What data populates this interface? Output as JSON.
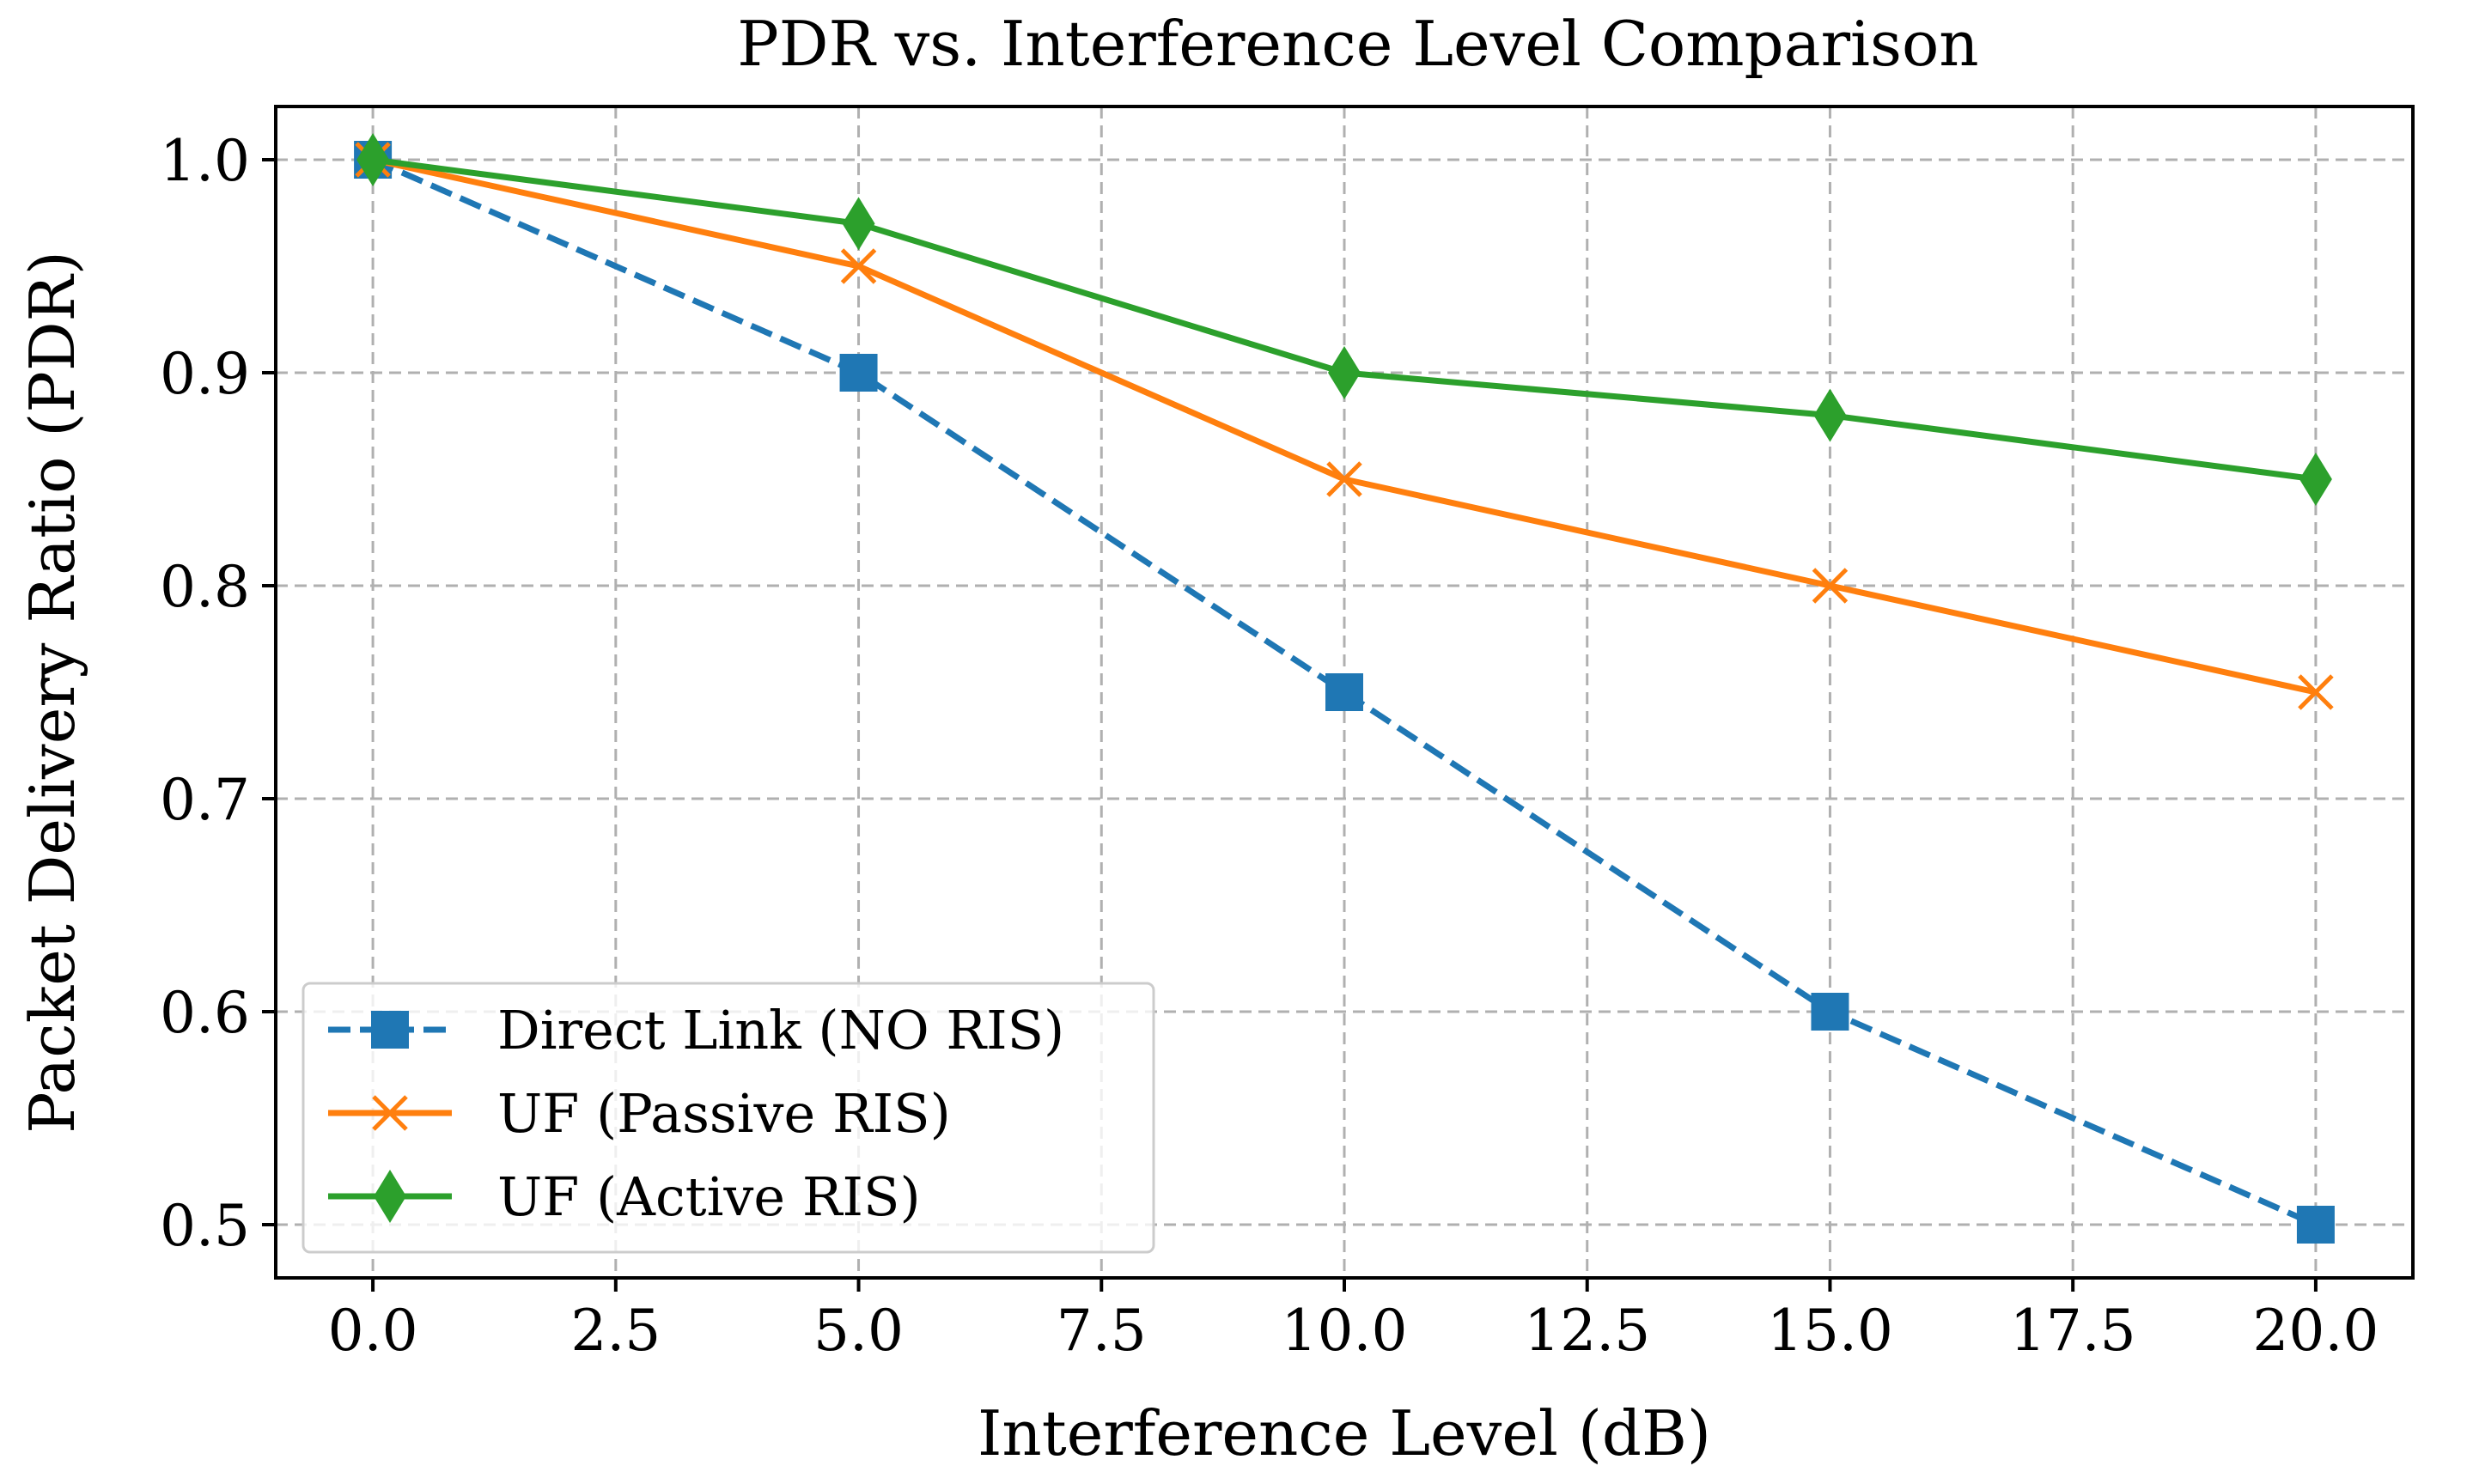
{
  "chart_data": {
    "type": "line",
    "title": "PDR vs. Interference Level Comparison",
    "xlabel": "Interference Level (dB)",
    "ylabel": "Packet Delivery Ratio (PDR)",
    "xlim": [
      -1,
      21
    ],
    "ylim": [
      0.475,
      1.025
    ],
    "grid": true,
    "legend_position": "bottom-left",
    "xticks": [
      0.0,
      2.5,
      5.0,
      7.5,
      10.0,
      12.5,
      15.0,
      17.5,
      20.0
    ],
    "xtick_labels": [
      "0.0",
      "2.5",
      "5.0",
      "7.5",
      "10.0",
      "12.5",
      "15.0",
      "17.5",
      "20.0"
    ],
    "yticks": [
      0.5,
      0.6,
      0.7,
      0.8,
      0.9,
      1.0
    ],
    "ytick_labels": [
      "0.5",
      "0.6",
      "0.7",
      "0.8",
      "0.9",
      "1.0"
    ],
    "x": [
      0,
      5,
      10,
      15,
      20
    ],
    "series": [
      {
        "name": "Direct Link (NO RIS)",
        "values": [
          1.0,
          0.9,
          0.75,
          0.6,
          0.5
        ],
        "color": "#1f77b4",
        "linestyle": "dashed",
        "marker": "square"
      },
      {
        "name": "UF (Passive RIS)",
        "values": [
          1.0,
          0.95,
          0.85,
          0.8,
          0.75
        ],
        "color": "#ff7f0e",
        "linestyle": "solid",
        "marker": "x"
      },
      {
        "name": "UF (Active RIS)",
        "values": [
          1.0,
          0.97,
          0.9,
          0.88,
          0.85
        ],
        "color": "#2ca02c",
        "linestyle": "solid",
        "marker": "diamond"
      }
    ]
  }
}
